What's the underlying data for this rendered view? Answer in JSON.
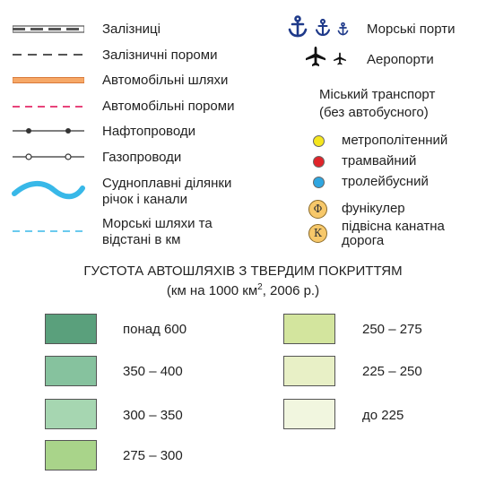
{
  "legend": {
    "lines": [
      {
        "label": "Залізниці"
      },
      {
        "label": "Залізничні пороми"
      },
      {
        "label": "Автомобільні шляхи"
      },
      {
        "label": "Автомобільні пороми"
      },
      {
        "label": "Нафтопроводи"
      },
      {
        "label": "Газопроводи"
      },
      {
        "label_line1": "Судноплавні ділянки",
        "label_line2": "річок і канали"
      },
      {
        "label_line1": "Морські шляхи та",
        "label_line2": "відстані в км"
      }
    ],
    "ports": {
      "label": "Морські порти",
      "icon": "anchor-icon"
    },
    "airports": {
      "label": "Аеропорти",
      "icon": "airplane-icon"
    },
    "city_transport": {
      "title_line1": "Міський транспорт",
      "title_line2": "(без автобусного)",
      "items": [
        {
          "label": "метрополітенний",
          "color": "#f5e61e"
        },
        {
          "label": "трамвайний",
          "color": "#e0242a"
        },
        {
          "label": "тролейбусний",
          "color": "#2fa6e0"
        }
      ],
      "funicular": {
        "letter": "Ф",
        "label": "фунікулер"
      },
      "cable": {
        "letter": "К",
        "label_line1": "підвісна канатна",
        "label_line2": "дорога"
      }
    }
  },
  "density": {
    "title": "ГУСТОТА АВТОШЛЯХІВ З ТВЕРДИМ ПОКРИТТЯМ",
    "subtitle_prefix": "(км  на 1000 км",
    "subtitle_sup": "2",
    "subtitle_suffix": ", 2006 р.)",
    "classes": [
      {
        "label": "понад 600",
        "color": "#5aa07c"
      },
      {
        "label": "350 – 400",
        "color": "#86c29e"
      },
      {
        "label": "300 – 350",
        "color": "#a6d6b1"
      },
      {
        "label": "275 – 300",
        "color": "#a9d48a"
      },
      {
        "label": "250 – 275",
        "color": "#d3e59e"
      },
      {
        "label": "225  – 250",
        "color": "#e8f0c6"
      },
      {
        "label": "до 225",
        "color": "#f1f6df"
      }
    ]
  }
}
